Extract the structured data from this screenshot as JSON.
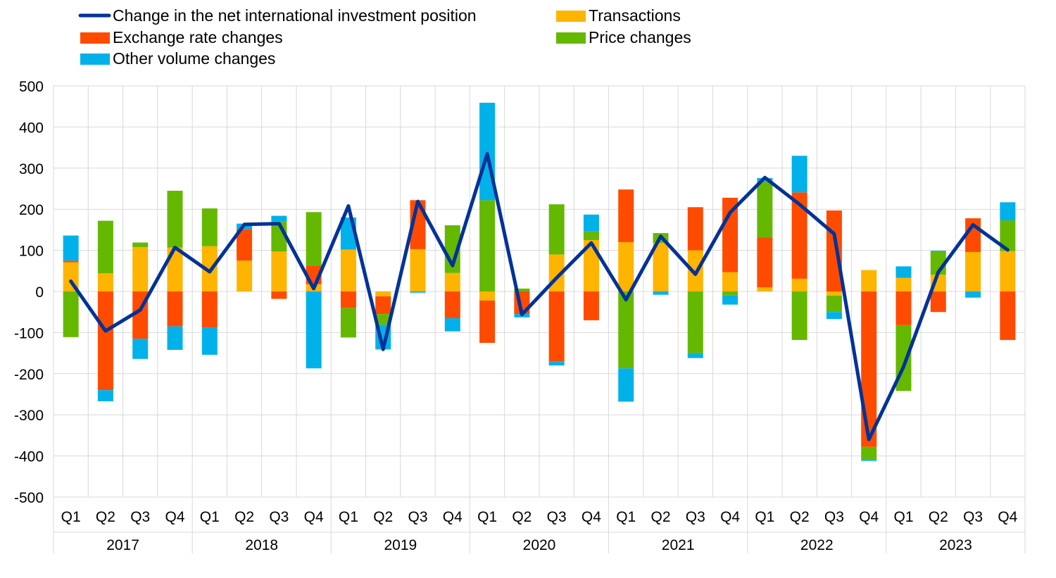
{
  "chart_data": {
    "type": "bar",
    "stacked": true,
    "ylim": [
      -500,
      500
    ],
    "yticks": [
      500,
      400,
      300,
      200,
      100,
      0,
      -100,
      -200,
      -300,
      -400,
      -500
    ],
    "grid": true,
    "legend_position": "top",
    "quarters": [
      "Q1",
      "Q2",
      "Q3",
      "Q4",
      "Q1",
      "Q2",
      "Q3",
      "Q4",
      "Q1",
      "Q2",
      "Q3",
      "Q4",
      "Q1",
      "Q2",
      "Q3",
      "Q4",
      "Q1",
      "Q2",
      "Q3",
      "Q4",
      "Q1",
      "Q2",
      "Q3",
      "Q4",
      "Q1",
      "Q2",
      "Q3",
      "Q4"
    ],
    "years": [
      "2017",
      "2018",
      "2019",
      "2020",
      "2021",
      "2022",
      "2023"
    ],
    "series": [
      {
        "name": "Transactions",
        "kind": "bar",
        "color": "#FFB400",
        "values": [
          71,
          44,
          108,
          107,
          110,
          75,
          97,
          18,
          102,
          -12,
          103,
          45,
          -22,
          0,
          90,
          125,
          120,
          118,
          100,
          47,
          10,
          31,
          -10,
          52,
          33,
          41,
          96,
          98
        ]
      },
      {
        "name": "Exchange rate changes",
        "kind": "bar",
        "color": "#FF4B00",
        "values": [
          4,
          -240,
          -115,
          -85,
          -88,
          77,
          -18,
          45,
          -40,
          -43,
          119,
          -65,
          -103,
          -55,
          -170,
          -70,
          128,
          0,
          105,
          181,
          121,
          210,
          197,
          -378,
          -82,
          -50,
          82,
          -118
        ]
      },
      {
        "name": "Price changes",
        "kind": "bar",
        "color": "#65B800",
        "values": [
          -111,
          128,
          11,
          138,
          92,
          0,
          73,
          130,
          -72,
          -26,
          0,
          116,
          222,
          7,
          122,
          22,
          -187,
          24,
          -150,
          -10,
          137,
          -118,
          -40,
          -30,
          -160,
          55,
          0,
          75
        ]
      },
      {
        "name": "Other volume changes",
        "kind": "bar",
        "color": "#00B1EA",
        "values": [
          61,
          -27,
          -49,
          -57,
          -66,
          13,
          14,
          -187,
          78,
          -60,
          -3,
          -32,
          237,
          -8,
          -10,
          40,
          -81,
          -8,
          -12,
          -22,
          8,
          89,
          -17,
          -4,
          28,
          3,
          -15,
          44
        ]
      },
      {
        "name": "Change in the net international investment position",
        "kind": "line",
        "color": "#003299",
        "values": [
          25,
          -96,
          -45,
          107,
          48,
          163,
          165,
          7,
          208,
          -141,
          219,
          63,
          335,
          -56,
          33,
          118,
          -20,
          134,
          42,
          192,
          277,
          212,
          140,
          -360,
          -183,
          47,
          162,
          101
        ]
      }
    ]
  }
}
